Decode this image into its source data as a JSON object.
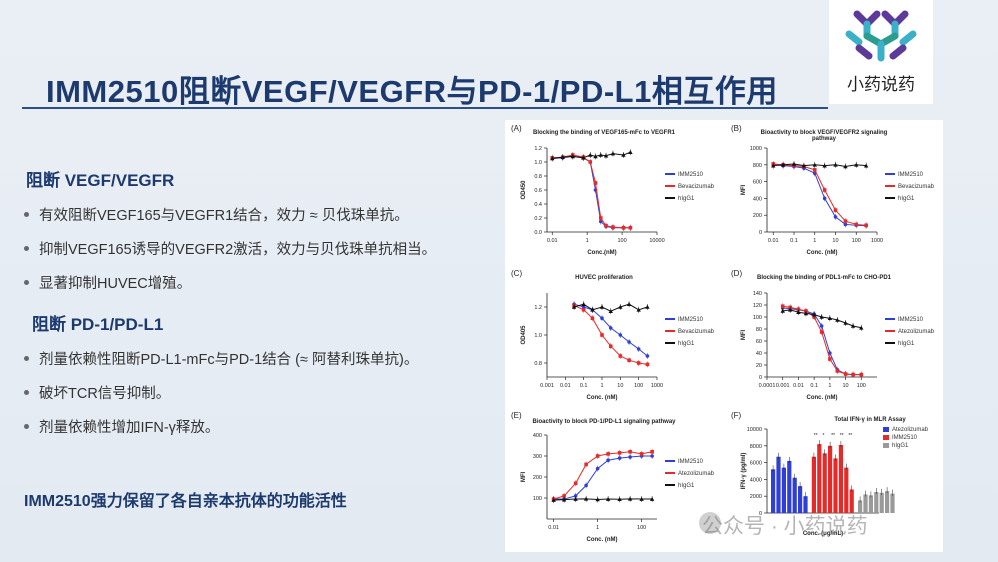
{
  "slide": {
    "title": "IMM2510阻断VEGF/VEGFR与PD-1/PD-L1相互作用",
    "logo_text": "小药说药",
    "section1": {
      "heading": "阻断 VEGF/VEGFR",
      "bullets": [
        "有效阻断VEGF165与VEGFR1结合，效力 ≈ 贝伐珠单抗。",
        "抑制VEGF165诱导的VEGFR2激活，效力与贝伐珠单抗相当。",
        "显著抑制HUVEC增殖。"
      ]
    },
    "section2": {
      "heading": "阻断 PD-1/PD-L1",
      "bullets": [
        "剂量依赖性阻断PD-L1-mFc与PD-1结合 (≈ 阿替利珠单抗)。",
        "破坏TCR信号抑制。",
        "剂量依赖性增加IFN-γ释放。"
      ]
    },
    "conclusion": "IMM2510强力保留了各自亲本抗体的功能活性",
    "watermark": "公众号 · 小药说药"
  },
  "colors": {
    "blue": "#2f3fd6",
    "red": "#e52a2a",
    "black": "#111111",
    "grey": "#9a9a9a",
    "title": "#1d3a6e"
  },
  "chart_data": [
    {
      "panel": "(A)",
      "type": "line",
      "title": "Blocking the binding of VEGF165-mFc to VEGFR1",
      "xlabel": "Conc.(nM)",
      "ylabel": "OD450",
      "xscale": "log",
      "xlim": [
        0.005,
        10000
      ],
      "ylim": [
        0,
        1.2
      ],
      "yticks": [
        "0.0",
        "0.2",
        "0.4",
        "0.6",
        "0.8",
        "1.0",
        "1.2"
      ],
      "xticks": [
        "0.01",
        "1",
        "100",
        "10000"
      ],
      "series": [
        {
          "name": "IMM2510",
          "color": "blue",
          "x": [
            0.01,
            0.04,
            0.15,
            0.6,
            1.5,
            3,
            6,
            12,
            30,
            120,
            300
          ],
          "y": [
            1.05,
            1.06,
            1.08,
            1.06,
            1.0,
            0.6,
            0.15,
            0.08,
            0.06,
            0.06,
            0.06
          ]
        },
        {
          "name": "Bevacizumab",
          "color": "red",
          "x": [
            0.01,
            0.04,
            0.15,
            0.6,
            1.5,
            3,
            6,
            12,
            30,
            120,
            300
          ],
          "y": [
            1.06,
            1.07,
            1.1,
            1.07,
            1.0,
            0.7,
            0.2,
            0.09,
            0.07,
            0.06,
            0.06
          ]
        },
        {
          "name": "hIgG1",
          "color": "black",
          "x": [
            0.01,
            0.04,
            0.15,
            0.6,
            1.5,
            3,
            6,
            12,
            30,
            120,
            300
          ],
          "y": [
            1.05,
            1.07,
            1.08,
            1.06,
            1.1,
            1.08,
            1.1,
            1.09,
            1.12,
            1.1,
            1.14
          ]
        }
      ]
    },
    {
      "panel": "(B)",
      "type": "line",
      "title": "Bioactivity to block VEGF/VEGFR2 signaling pathway",
      "xlabel": "Conc. (nM)",
      "ylabel": "MFI",
      "xscale": "log",
      "xlim": [
        0.005,
        1000
      ],
      "ylim": [
        0,
        1000
      ],
      "yticks": [
        "0",
        "200",
        "400",
        "600",
        "800",
        "1000"
      ],
      "xticks": [
        "0.01",
        "0.1",
        "1",
        "10",
        "100",
        "1000"
      ],
      "series": [
        {
          "name": "IMM2510",
          "color": "blue",
          "x": [
            0.01,
            0.03,
            0.1,
            0.3,
            1,
            3,
            10,
            30,
            100,
            300
          ],
          "y": [
            800,
            790,
            780,
            760,
            700,
            400,
            180,
            90,
            80,
            75
          ]
        },
        {
          "name": "Bevacizumab",
          "color": "red",
          "x": [
            0.01,
            0.03,
            0.1,
            0.3,
            1,
            3,
            10,
            30,
            100,
            300
          ],
          "y": [
            810,
            800,
            790,
            780,
            740,
            500,
            260,
            130,
            90,
            80
          ]
        },
        {
          "name": "hIgG1",
          "color": "black",
          "x": [
            0.01,
            0.03,
            0.1,
            0.3,
            1,
            3,
            10,
            30,
            100,
            300
          ],
          "y": [
            790,
            800,
            810,
            790,
            800,
            790,
            800,
            780,
            800,
            790
          ]
        }
      ]
    },
    {
      "panel": "(C)",
      "type": "line",
      "title": "HUVEC proliferation",
      "xlabel": "Conc. (nM)",
      "ylabel": "OD405",
      "xscale": "log",
      "xlim": [
        0.001,
        1000
      ],
      "ylim": [
        0.7,
        1.3
      ],
      "yticks": [
        "0.8",
        "1.0",
        "1.2"
      ],
      "xticks": [
        "0.001",
        "0.01",
        "0.1",
        "1",
        "10",
        "100",
        "1000"
      ],
      "series": [
        {
          "name": "IMM2510",
          "color": "blue",
          "x": [
            0.03,
            0.1,
            0.3,
            1,
            3,
            10,
            30,
            100,
            300
          ],
          "y": [
            1.22,
            1.2,
            1.18,
            1.12,
            1.05,
            1.0,
            0.95,
            0.9,
            0.85
          ]
        },
        {
          "name": "Bevacizumab",
          "color": "red",
          "x": [
            0.03,
            0.1,
            0.3,
            1,
            3,
            10,
            30,
            100,
            300
          ],
          "y": [
            1.21,
            1.18,
            1.12,
            1.0,
            0.92,
            0.85,
            0.82,
            0.8,
            0.79
          ]
        },
        {
          "name": "hIgG1",
          "color": "black",
          "x": [
            0.03,
            0.1,
            0.3,
            1,
            3,
            10,
            30,
            100,
            300
          ],
          "y": [
            1.2,
            1.22,
            1.18,
            1.2,
            1.17,
            1.2,
            1.22,
            1.18,
            1.2
          ]
        }
      ]
    },
    {
      "panel": "(D)",
      "type": "line",
      "title": "Blocking the binding of PDL1-mFc to CHO-PD1",
      "xlabel": "Conc. (nM)",
      "ylabel": "MFI",
      "xscale": "log",
      "xlim": [
        0.0001,
        1000
      ],
      "ylim": [
        0,
        140
      ],
      "yticks": [
        "0",
        "20",
        "40",
        "60",
        "80",
        "100",
        "120",
        "140"
      ],
      "xticks": [
        "0.0001",
        "0.001",
        "0.01",
        "0.1",
        "1",
        "10",
        "100"
      ],
      "series": [
        {
          "name": "IMM2510",
          "color": "blue",
          "x": [
            0.001,
            0.003,
            0.01,
            0.03,
            0.1,
            0.3,
            1,
            3,
            10,
            30,
            100
          ],
          "y": [
            115,
            114,
            112,
            110,
            105,
            85,
            40,
            12,
            5,
            4,
            4
          ]
        },
        {
          "name": "Atezolizumab",
          "color": "red",
          "x": [
            0.001,
            0.003,
            0.01,
            0.03,
            0.1,
            0.3,
            1,
            3,
            10,
            30,
            100
          ],
          "y": [
            118,
            116,
            113,
            110,
            100,
            75,
            30,
            10,
            5,
            4,
            4
          ]
        },
        {
          "name": "hIgG1",
          "color": "black",
          "x": [
            0.001,
            0.003,
            0.01,
            0.03,
            0.1,
            0.3,
            1,
            3,
            10,
            30,
            100
          ],
          "y": [
            110,
            112,
            108,
            106,
            104,
            100,
            98,
            95,
            90,
            85,
            82
          ]
        }
      ]
    },
    {
      "panel": "(E)",
      "type": "line",
      "title": "Bioactivity to block PD-1/PD-L1 signaling pathway",
      "xlabel": "Conc. (nM)",
      "ylabel": "MFI",
      "xscale": "log",
      "xlim": [
        0.005,
        500
      ],
      "ylim": [
        0,
        400
      ],
      "yticks": [
        "100",
        "200",
        "300",
        "400"
      ],
      "xticks": [
        "0.01",
        "1",
        "100"
      ],
      "series": [
        {
          "name": "IMM2510",
          "color": "blue",
          "x": [
            0.01,
            0.03,
            0.1,
            0.3,
            1,
            3,
            10,
            30,
            100,
            300
          ],
          "y": [
            95,
            95,
            110,
            160,
            240,
            280,
            290,
            295,
            300,
            300
          ]
        },
        {
          "name": "Atezolizumab",
          "color": "red",
          "x": [
            0.01,
            0.03,
            0.1,
            0.3,
            1,
            3,
            10,
            30,
            100,
            300
          ],
          "y": [
            95,
            110,
            170,
            260,
            300,
            310,
            315,
            320,
            310,
            320
          ]
        },
        {
          "name": "hIgG1",
          "color": "black",
          "x": [
            0.01,
            0.03,
            0.1,
            0.3,
            1,
            3,
            10,
            30,
            100,
            300
          ],
          "y": [
            90,
            92,
            95,
            96,
            93,
            95,
            94,
            96,
            95,
            95
          ]
        }
      ]
    },
    {
      "panel": "(F)",
      "type": "bar",
      "title": "Total IFN-γ in MLR Assay",
      "xlabel": "Conc. (μg/mL)",
      "ylabel": "IFN-γ (pg/ml)",
      "ylim": [
        0,
        10000
      ],
      "yticks": [
        "0",
        "2000",
        "4000",
        "6000",
        "8000",
        "10000"
      ],
      "significance": [
        "**",
        "*",
        "**",
        "**",
        "**"
      ],
      "series": [
        {
          "name": "Atezolizumab",
          "color": "blue",
          "values": [
            5200,
            6700,
            5400,
            6200,
            4200,
            3200,
            2000
          ]
        },
        {
          "name": "IMM2510",
          "color": "red",
          "values": [
            6700,
            8200,
            7100,
            8000,
            6500,
            8100,
            5400,
            2800
          ]
        },
        {
          "name": "hIgG1",
          "color": "grey",
          "values": [
            1500,
            2200,
            2100,
            2500,
            2400,
            2600,
            2300
          ]
        }
      ]
    }
  ]
}
